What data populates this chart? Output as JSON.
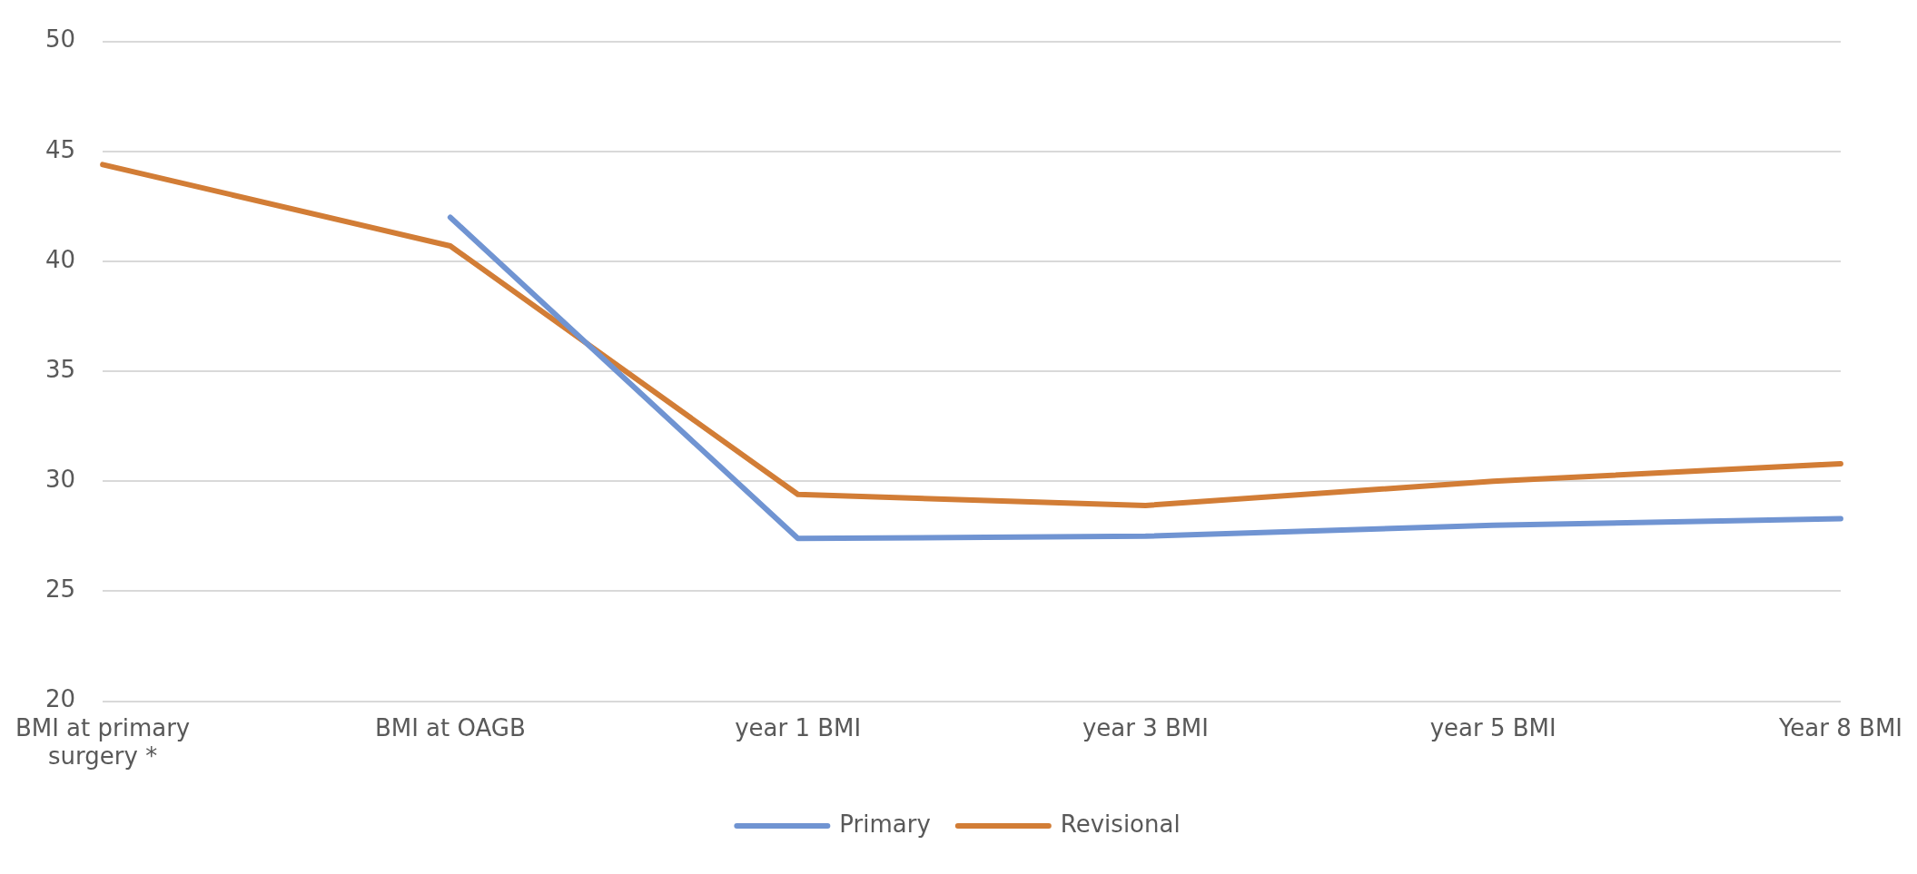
{
  "chart_data": {
    "type": "line",
    "categories": [
      "BMI at primary surgery *",
      "BMI at OAGB",
      "year 1 BMI",
      "year 3 BMI",
      "year 5 BMI",
      "Year 8 BMI"
    ],
    "series": [
      {
        "name": "Primary",
        "color": "#7094d2",
        "values": [
          null,
          42.0,
          27.4,
          27.5,
          28.0,
          28.3
        ]
      },
      {
        "name": "Revisional",
        "color": "#d27d36",
        "values": [
          44.4,
          40.7,
          29.4,
          28.9,
          30.0,
          30.8
        ]
      }
    ],
    "ylim": [
      20,
      50
    ],
    "yticks": [
      20,
      25,
      30,
      35,
      40,
      45,
      50
    ],
    "grid": "y",
    "legend": "bottom",
    "marker": "none",
    "line_style": "solid"
  }
}
